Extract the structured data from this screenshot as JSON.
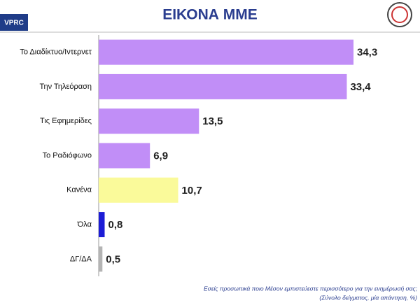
{
  "logo": "VPRC",
  "chart_data": {
    "type": "hbar",
    "title": "ΕΙΚΟΝΑ ΜΜΕ",
    "categories": [
      "Το Διαδίκτυο/Ιντερνετ",
      "Την Τηλεόραση",
      "Τις Εφημερίδες",
      "Το Ραδιόφωνο",
      "Κανένα",
      "Όλα",
      "ΔΓ/ΔΑ"
    ],
    "values": [
      34.3,
      33.4,
      13.5,
      6.9,
      10.7,
      0.8,
      0.5
    ],
    "value_labels": [
      "34,3",
      "33,4",
      "13,5",
      "6,9",
      "10,7",
      "0,8",
      "0,5"
    ],
    "colors": [
      "#c18ef7",
      "#c18ef7",
      "#c18ef7",
      "#c18ef7",
      "#fafa9a",
      "#1c1cd6",
      "#b4b4b4"
    ],
    "notes": [
      "Εσείς προσωπικά ποιο Μέσον εμπιστεύεστε περισσότερο για την ενημέρωσή σας;",
      "(Σύνολο δείγματος, μία απάντηση, %)"
    ]
  }
}
